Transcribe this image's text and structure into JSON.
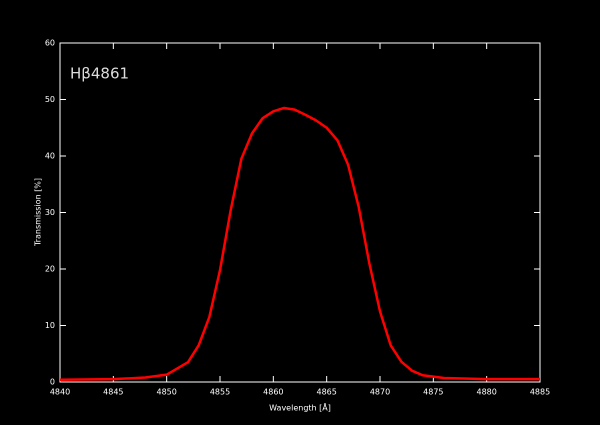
{
  "chart_data": {
    "type": "line",
    "annotation": "Hβ4861",
    "xlabel": "Wavelength [Å]",
    "ylabel": "Transmission [%]",
    "x": [
      4840,
      4845,
      4848,
      4850,
      4852,
      4853,
      4854,
      4855,
      4856,
      4857,
      4858,
      4859,
      4860,
      4861,
      4862,
      4863,
      4864,
      4865,
      4866,
      4867,
      4868,
      4869,
      4870,
      4871,
      4872,
      4873,
      4874,
      4876,
      4880,
      4885
    ],
    "values": [
      0.4,
      0.5,
      0.8,
      1.3,
      3.5,
      6.5,
      11.5,
      19.8,
      30.4,
      39.5,
      44,
      46.7,
      47.9,
      48.5,
      48.2,
      47.3,
      46.3,
      45,
      42.8,
      38.5,
      31,
      21,
      12.5,
      6.5,
      3.6,
      2,
      1.2,
      0.7,
      0.5,
      0.5
    ],
    "color": "#ff0000",
    "xlim": [
      4840,
      4885
    ],
    "ylim": [
      0,
      60
    ],
    "xticks": [
      4840,
      4845,
      4850,
      4855,
      4860,
      4865,
      4870,
      4875,
      4880,
      4885
    ],
    "yticks": [
      0,
      10,
      20,
      30,
      40,
      50,
      60
    ]
  }
}
